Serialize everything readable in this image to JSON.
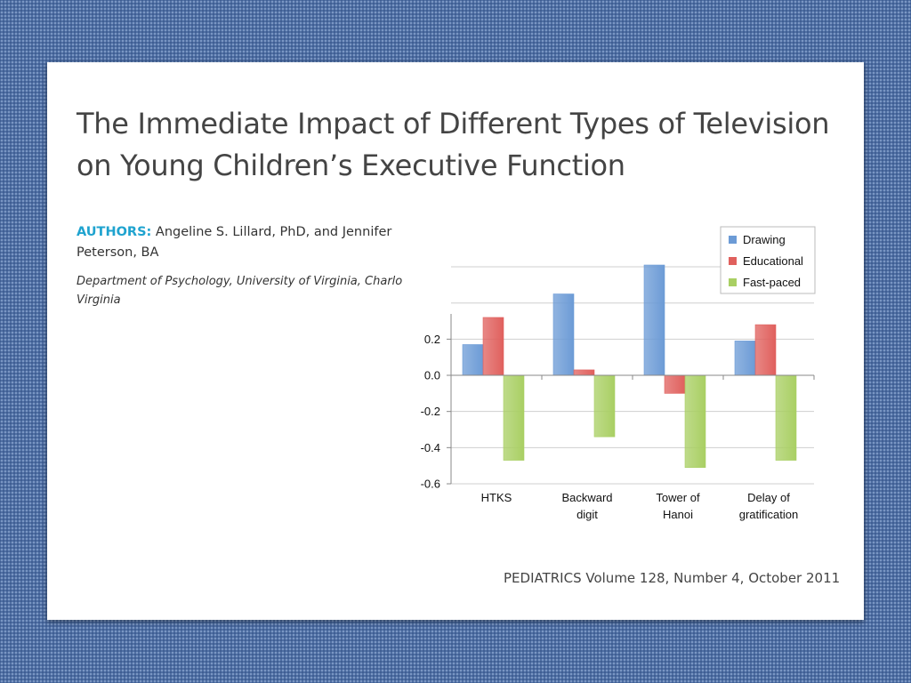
{
  "slide": {
    "title_line1": "The Immediate Impact of Different Types of Television",
    "title_line2": "on Young Children’s Executive Function",
    "authors_label": "AUTHORS:",
    "authors_text": "Angeline S. Lillard, PhD,  and Jennifer Peterson, BA",
    "department": "Department of Psychology, University of Virginia, Charlottesville, Virginia",
    "citation": "PEDIATRICS Volume 128, Number 4, October 2011"
  },
  "colors": {
    "background": "#4f6fa3",
    "Drawing": "#6c9bd6",
    "Educational": "#e0605d",
    "Fast-paced": "#a9cf63"
  },
  "chart_data": {
    "type": "bar",
    "categories": [
      [
        "HTKS"
      ],
      [
        "Backward",
        "digit"
      ],
      [
        "Tower of",
        "Hanoi"
      ],
      [
        "Delay of",
        "gratification"
      ]
    ],
    "series": [
      {
        "name": "Drawing",
        "values": [
          0.17,
          0.45,
          0.61,
          0.19
        ]
      },
      {
        "name": "Educational",
        "values": [
          0.32,
          0.03,
          -0.1,
          0.28
        ]
      },
      {
        "name": "Fast-paced",
        "values": [
          -0.47,
          -0.34,
          -0.51,
          -0.47
        ]
      }
    ],
    "yticks": [
      0.2,
      0.0,
      -0.2,
      -0.4,
      -0.6
    ],
    "ytick_labels": [
      "0.2",
      "0.0",
      "-0.2",
      "-0.4",
      "-0.6"
    ],
    "ylim": [
      -0.6,
      0.61
    ],
    "grid": true,
    "legend": "top-right"
  }
}
